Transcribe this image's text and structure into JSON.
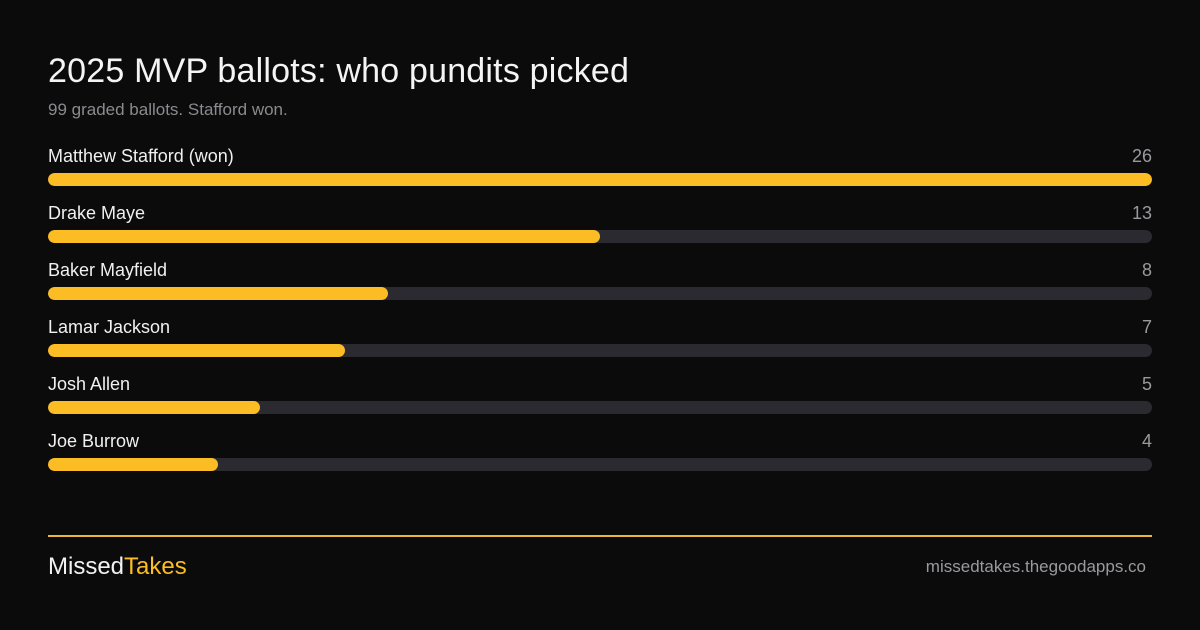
{
  "title": "2025 MVP ballots: who pundits picked",
  "subtitle": "99 graded ballots. Stafford won.",
  "colors": {
    "background": "#0b0b0c",
    "bar_fill": "#fbbd23",
    "bar_track": "#2b2a30",
    "rule": "#f0b537"
  },
  "chart_data": {
    "type": "bar",
    "orientation": "horizontal",
    "categories": [
      "Matthew Stafford (won)",
      "Drake Maye",
      "Baker Mayfield",
      "Lamar Jackson",
      "Josh Allen",
      "Joe Burrow"
    ],
    "values": [
      26,
      13,
      8,
      7,
      5,
      4
    ],
    "xlim": [
      0,
      26
    ],
    "grid": false,
    "legend": "none",
    "title": "2025 MVP ballots: who pundits picked",
    "subtitle": "99 graded ballots. Stafford won."
  },
  "footer": {
    "brand_part1": "Missed",
    "brand_part2": "Takes",
    "url": "missedtakes.thegoodapps.co"
  }
}
